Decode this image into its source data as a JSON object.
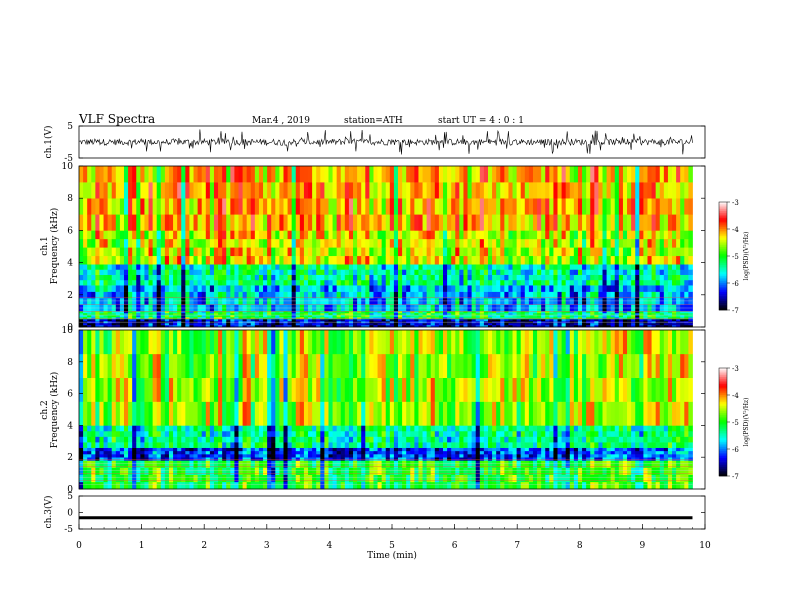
{
  "header": {
    "title": "VLF  Spectra",
    "date": "Mar.4  , 2019",
    "station": "station=ATH",
    "start": "start  UT  =   4  : 0   : 1"
  },
  "colorbar": {
    "label": "log(PSD)(V²/Hz)",
    "ticks": [
      "-3",
      "-4",
      "-5",
      "-6",
      "-7"
    ],
    "colors": [
      "#ffffff",
      "#ff0000",
      "#ffff00",
      "#00ff00",
      "#00ffff",
      "#0000ff",
      "#000000"
    ]
  },
  "chart_data": [
    {
      "type": "line",
      "panel": "ch1-waveform",
      "ylabel": "ch.1(V)",
      "ylim": [
        -5,
        5
      ],
      "yticks": [
        "5",
        "-5"
      ],
      "xlim": [
        0,
        10
      ],
      "description_values": {
        "baseline": 0,
        "typical_amplitude": 1,
        "spike_amplitude": 4
      },
      "data_end_min": 9.8
    },
    {
      "type": "heatmap",
      "panel": "ch1-spectrogram",
      "ylabel_line1": "ch.1",
      "ylabel_line2": "Frequency (kHz)",
      "ylim": [
        0,
        10
      ],
      "yticks": [
        "0",
        "2",
        "4",
        "6",
        "8",
        "10"
      ],
      "xlim": [
        0,
        10
      ],
      "zlim": [
        -7,
        -3
      ],
      "bands": [
        {
          "f_from": 0,
          "f_to": 0.5,
          "logpsd": -6.5
        },
        {
          "f_from": 0.5,
          "f_to": 1.0,
          "logpsd": -5.2
        },
        {
          "f_from": 1.0,
          "f_to": 2.6,
          "logpsd": -5.8
        },
        {
          "f_from": 2.6,
          "f_to": 3.9,
          "logpsd": -5.4
        },
        {
          "f_from": 3.9,
          "f_to": 6.0,
          "logpsd": -4.4
        },
        {
          "f_from": 6.0,
          "f_to": 10,
          "logpsd": -4.1
        }
      ]
    },
    {
      "type": "heatmap",
      "panel": "ch2-spectrogram",
      "ylabel_line1": "ch.2",
      "ylabel_line2": "Frequency (kHz)",
      "ylim": [
        0,
        10
      ],
      "yticks": [
        "0",
        "2",
        "4",
        "6",
        "8",
        "10"
      ],
      "xlim": [
        0,
        10
      ],
      "zlim": [
        -7,
        -3
      ],
      "bands": [
        {
          "f_from": 0,
          "f_to": 1.8,
          "logpsd": -5.0
        },
        {
          "f_from": 1.8,
          "f_to": 2.6,
          "logpsd": -6.2
        },
        {
          "f_from": 2.6,
          "f_to": 4.0,
          "logpsd": -5.4
        },
        {
          "f_from": 4.0,
          "f_to": 10,
          "logpsd": -4.6
        }
      ]
    },
    {
      "type": "line",
      "panel": "ch3-waveform",
      "ylabel": "ch.3(V)",
      "ylim": [
        -5,
        5
      ],
      "yticks": [
        "5",
        "0",
        "-5"
      ],
      "xlim": [
        0,
        10
      ],
      "level": -1.6,
      "data_end_min": 9.8
    }
  ],
  "xaxis": {
    "label": "Time  (min)",
    "ticks": [
      "0",
      "1",
      "2",
      "3",
      "4",
      "5",
      "6",
      "7",
      "8",
      "9",
      "10"
    ]
  }
}
